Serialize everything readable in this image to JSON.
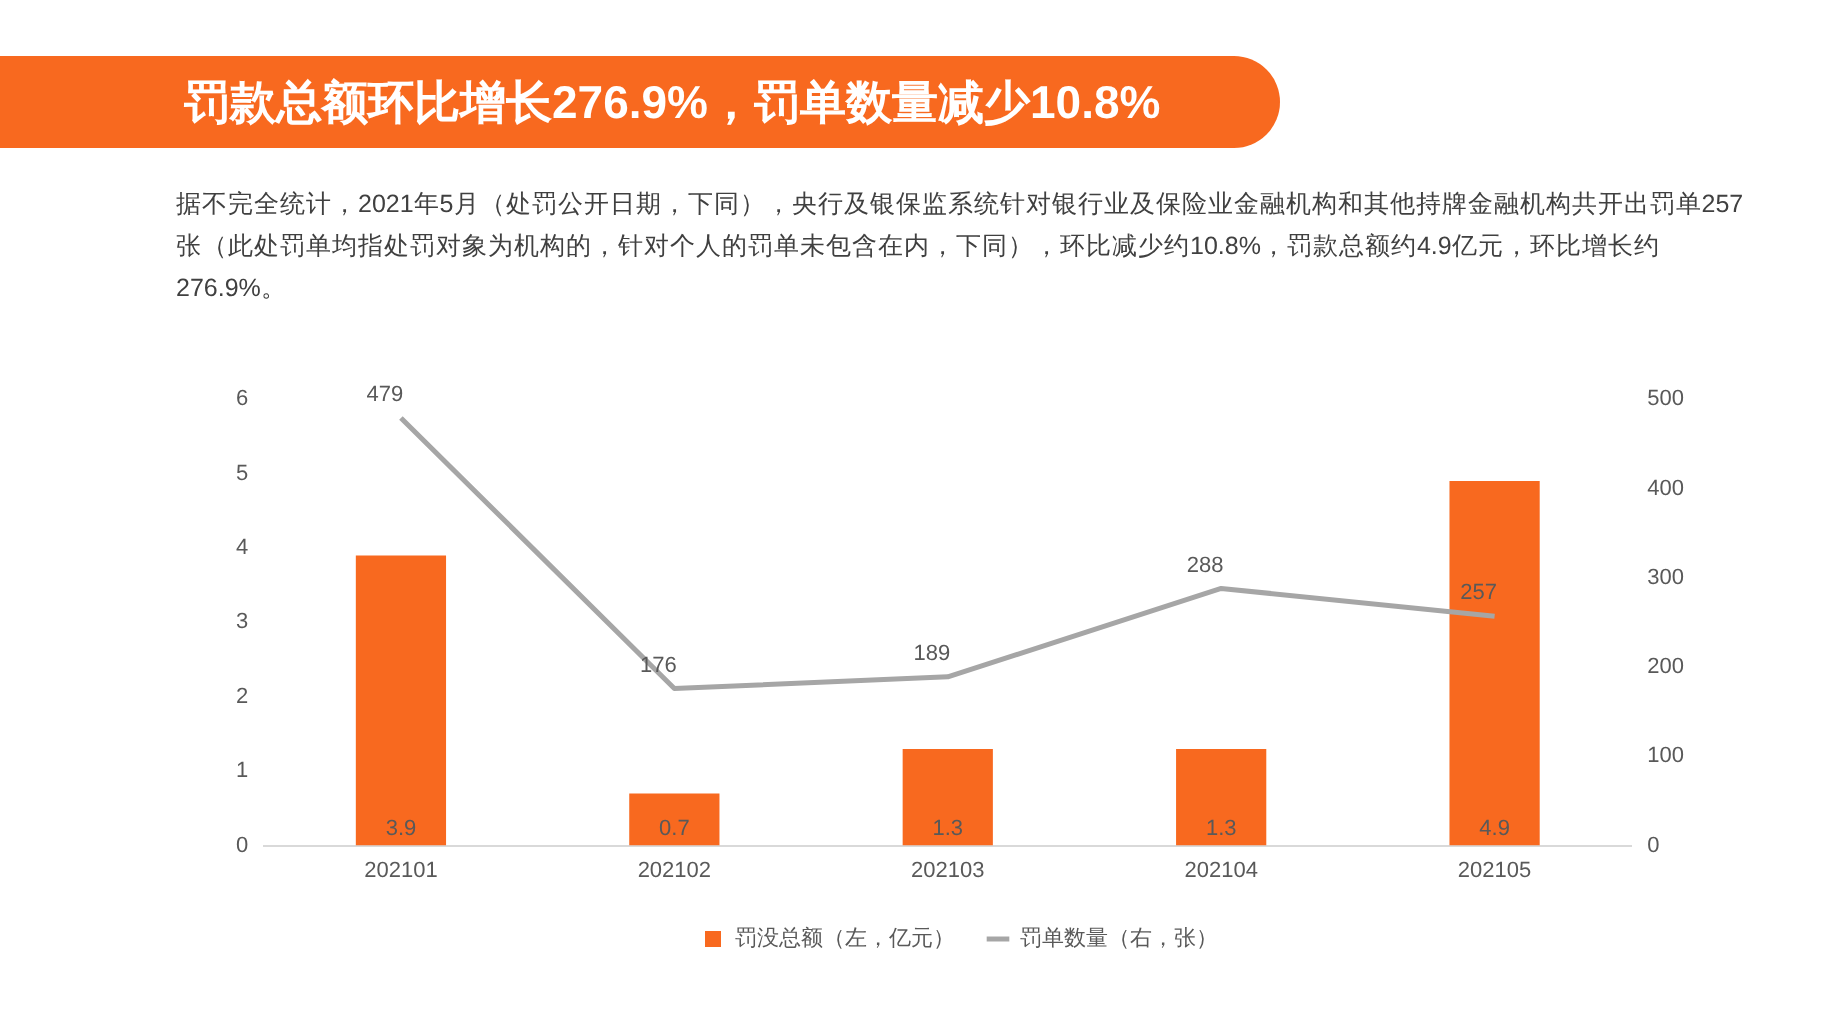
{
  "chart_data": {
    "type": "bar",
    "title": "罚款总额环比增长276.9%，罚单数量减少10.8%",
    "subtitle": "据不完全统计，2021年5月（处罚公开日期，下同），央行及银保监系统针对银行业及保险业金融机构和其他持牌金融机构共开出罚单257张（此处罚单均指处罚对象为机构的，针对个人的罚单未包含在内，下同），环比减少约10.8%，罚款总额约4.9亿元，环比增长约276.9%。",
    "categories": [
      "202101",
      "202102",
      "202103",
      "202104",
      "202105"
    ],
    "series": [
      {
        "name": "罚没总额（左，亿元）",
        "color": "#f8691f",
        "values": [
          3.9,
          0.7,
          1.3,
          1.3,
          4.9
        ]
      },
      {
        "name": "罚单数量（右，张）",
        "type": "line",
        "axis": "y2",
        "color": "#a6a6a6",
        "values": [
          479,
          176,
          189,
          288,
          257
        ]
      }
    ],
    "ylim": [
      0,
      6
    ],
    "yticks": [
      0,
      1,
      2,
      3,
      4,
      5,
      6
    ],
    "y2lim": [
      0,
      500
    ],
    "y2ticks": [
      0,
      100,
      200,
      300,
      400,
      500
    ],
    "data_labels": true,
    "grid": false,
    "legend": "bottom",
    "marker": "none",
    "line_style": "solid"
  }
}
